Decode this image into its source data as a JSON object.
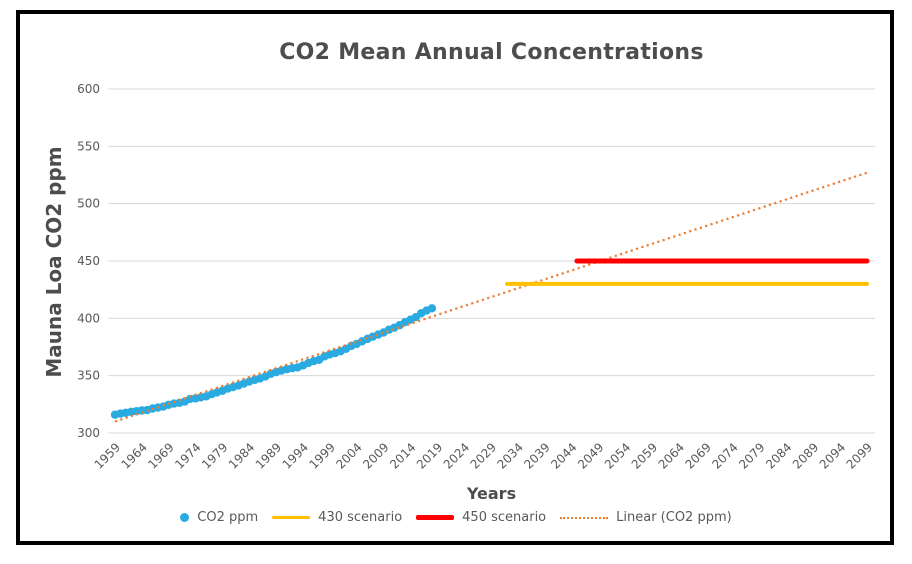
{
  "chart_data": {
    "type": "scatter",
    "title": "CO2 Mean Annual Concentrations",
    "xlabel": "Years",
    "ylabel": "Mauna Loa CO2 ppm",
    "xlim": [
      1959,
      2099
    ],
    "ylim": [
      300,
      600
    ],
    "yticks": [
      300,
      350,
      400,
      450,
      500,
      550,
      600
    ],
    "xticks": [
      1959,
      1964,
      1969,
      1974,
      1979,
      1984,
      1989,
      1994,
      1999,
      2004,
      2009,
      2014,
      2019,
      2024,
      2029,
      2034,
      2039,
      2044,
      2049,
      2054,
      2059,
      2064,
      2069,
      2074,
      2079,
      2084,
      2089,
      2094,
      2099
    ],
    "grid": "horizontal",
    "gridline_color": "#d9d9d9",
    "legend_position": "bottom",
    "series": [
      {
        "name": "CO2 ppm",
        "type": "scatter",
        "marker": "circle",
        "color": "#29ABE2",
        "x_start": 1959,
        "x_step": 1,
        "y": [
          315.97,
          316.91,
          317.64,
          318.45,
          318.99,
          319.62,
          320.04,
          321.37,
          322.18,
          323.05,
          324.62,
          325.68,
          326.32,
          327.46,
          329.68,
          330.19,
          331.12,
          332.03,
          333.84,
          335.41,
          336.84,
          338.76,
          340.12,
          341.48,
          343.15,
          344.87,
          346.35,
          347.61,
          349.31,
          351.69,
          353.2,
          354.45,
          355.7,
          356.54,
          357.21,
          358.96,
          360.97,
          362.74,
          363.88,
          366.84,
          368.54,
          369.71,
          371.32,
          373.45,
          375.98,
          377.7,
          379.98,
          382.09,
          384.02,
          385.83,
          387.64,
          390.1,
          391.85,
          394.06,
          396.74,
          398.81,
          401.01,
          404.41,
          406.76,
          408.72
        ]
      },
      {
        "name": "430 scenario",
        "type": "line",
        "color": "#FFC000",
        "x": [
          2032,
          2099
        ],
        "y": [
          430,
          430
        ]
      },
      {
        "name": "450 scenario",
        "type": "line",
        "color": "#FF0000",
        "x": [
          2045,
          2099
        ],
        "y": [
          450,
          450
        ]
      },
      {
        "name": "Linear (CO2 ppm)",
        "type": "dotted-line",
        "color": "#ED7D31",
        "x": [
          1959,
          2099
        ],
        "y": [
          310,
          527
        ]
      }
    ]
  }
}
